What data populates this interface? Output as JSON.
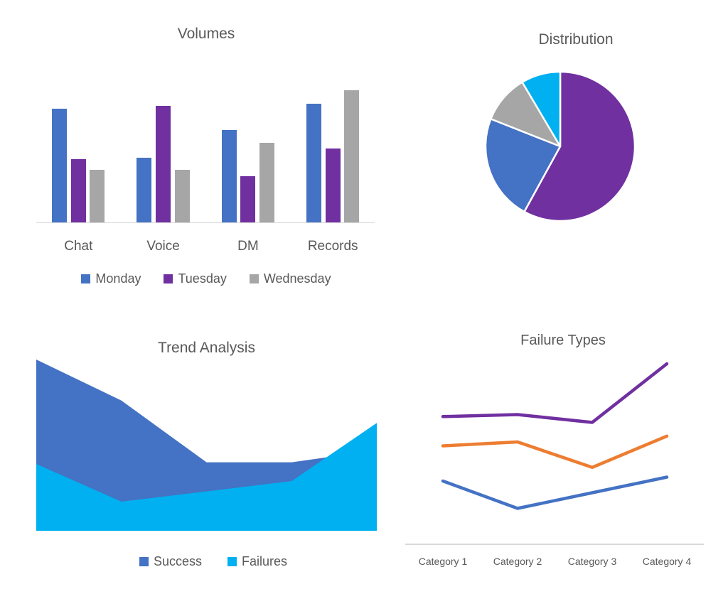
{
  "chart_data": [
    {
      "type": "bar",
      "title": "Volumes",
      "categories": [
        "Chat",
        "Voice",
        "DM",
        "Records"
      ],
      "series": [
        {
          "name": "Monday",
          "color": "#4472C4",
          "values": [
            86,
            49,
            70,
            90
          ]
        },
        {
          "name": "Tuesday",
          "color": "#7030A0",
          "values": [
            48,
            88,
            35,
            56
          ]
        },
        {
          "name": "Wednesday",
          "color": "#A6A6A6",
          "values": [
            40,
            40,
            60,
            100
          ]
        }
      ],
      "ylim": [
        0,
        100
      ],
      "grid": false,
      "legend_position": "bottom",
      "axis_color": "#D9D9D9"
    },
    {
      "type": "pie",
      "title": "Distribution",
      "segments": [
        {
          "value": 58,
          "color": "#7030A0"
        },
        {
          "value": 23,
          "color": "#4472C4"
        },
        {
          "value": 10.5,
          "color": "#A6A6A6"
        },
        {
          "value": 8.5,
          "color": "#00B0F0"
        }
      ],
      "start_angle_deg": 0,
      "direction": "clockwise",
      "slice_border_color": "#FFFFFF",
      "legend_position": "none"
    },
    {
      "type": "area",
      "title": "Trend Analysis",
      "x": [
        0,
        1,
        2,
        3,
        4
      ],
      "series": [
        {
          "name": "Success",
          "color": "#4472C4",
          "values": [
            100,
            76,
            40,
            40,
            47
          ]
        },
        {
          "name": "Failures",
          "color": "#00B0F0",
          "values": [
            39,
            17,
            23,
            29,
            63
          ]
        }
      ],
      "ylim": [
        0,
        100
      ],
      "grid": false,
      "overlap": true,
      "legend_position": "bottom"
    },
    {
      "type": "line",
      "title": "Failure Types",
      "categories": [
        "Category 1",
        "Category 2",
        "Category 3",
        "Category 4"
      ],
      "series": [
        {
          "color": "#7030A0",
          "values": [
            65,
            66,
            62,
            92
          ]
        },
        {
          "color": "#ED7D31",
          "values": [
            50,
            52,
            39,
            55
          ]
        },
        {
          "color": "#4472C4",
          "values": [
            32,
            18,
            26,
            34
          ]
        }
      ],
      "ylim": [
        0,
        100
      ],
      "grid": false,
      "legend_position": "none",
      "axis_color": "#D9D9D9"
    }
  ]
}
